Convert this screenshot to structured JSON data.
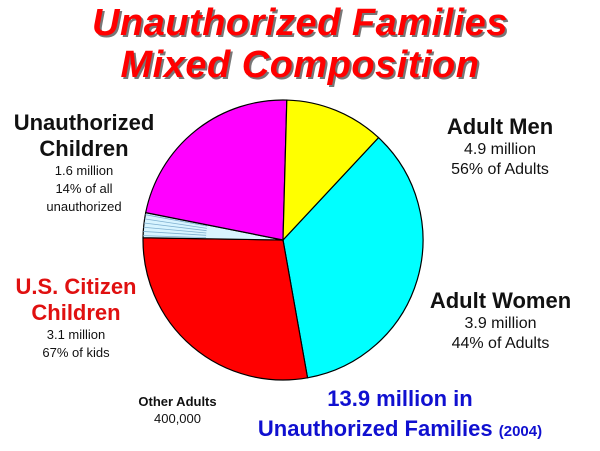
{
  "title_lines": [
    "Unauthorized Families",
    "Mixed Composition"
  ],
  "chart_data": {
    "type": "pie",
    "title": "Unauthorized Families Mixed Composition",
    "slices": [
      {
        "label": "Adult Men",
        "value": 4.9,
        "color": "#00ffff"
      },
      {
        "label": "Adult Women",
        "value": 3.9,
        "color": "#ff0000"
      },
      {
        "label": "Other Adults",
        "value": 0.4,
        "color": "#d8f4ff"
      },
      {
        "label": "U.S. Citizen Children",
        "value": 3.1,
        "color": "#ff00ff"
      },
      {
        "label": "Unauthorized Children",
        "value": 1.6,
        "color": "#ffff00"
      }
    ],
    "units": "million"
  },
  "labels": {
    "men": {
      "head": "Adult Men",
      "line1": "4.9 million",
      "line2": "56% of Adults"
    },
    "women": {
      "head": "Adult Women",
      "line1": "3.9 million",
      "line2": "44% of Adults"
    },
    "unauthorized_children": {
      "head1": "Unauthorized",
      "head2": "Children",
      "line1": "1.6 million",
      "line2": "14% of all",
      "line3": "unauthorized"
    },
    "us_citizen_children": {
      "head1": "U.S. Citizen",
      "head2": "Children",
      "line1": "3.1 million",
      "line2": "67% of kids"
    },
    "other_adults": {
      "head": "Other Adults",
      "line1": "400,000"
    }
  },
  "total": {
    "line1": "13.9 million in",
    "line2": "Unauthorized Families",
    "year": "(2004)"
  }
}
